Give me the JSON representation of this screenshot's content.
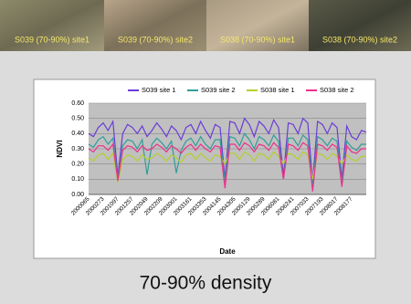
{
  "image_labels": [
    "S039 (70-90%) site1",
    "S039 (70-90%) site2",
    "S038 (70-90%) site1",
    "S038 (70-90%) site2"
  ],
  "caption": "70-90% density",
  "chart_data": {
    "type": "line",
    "x_label": "Date",
    "y_label": "NDVI",
    "categories": [
      "2000065",
      null,
      null,
      "2000273",
      null,
      null,
      "2001097",
      null,
      null,
      "2001257",
      null,
      null,
      "2002049",
      null,
      null,
      "2002209",
      null,
      null,
      "2003001",
      null,
      null,
      "2003161",
      null,
      null,
      "2003353",
      null,
      null,
      "2004145",
      null,
      null,
      "2004305",
      null,
      null,
      "2005129",
      null,
      null,
      "2005289",
      null,
      null,
      "2006081",
      null,
      null,
      "2006241",
      null,
      null,
      "2007033",
      null,
      null,
      "2007193",
      null,
      null,
      "2008017",
      null,
      null,
      "2008177",
      null,
      null,
      null
    ],
    "series": [
      {
        "name": "S039 site 1",
        "color": "#6a3bd6",
        "values": [
          0.4,
          0.38,
          0.44,
          0.47,
          0.42,
          0.48,
          0.12,
          0.4,
          0.46,
          0.44,
          0.4,
          0.45,
          0.38,
          0.42,
          0.47,
          0.43,
          0.38,
          0.45,
          0.42,
          0.36,
          0.44,
          0.46,
          0.4,
          0.48,
          0.42,
          0.37,
          0.46,
          0.44,
          0.1,
          0.48,
          0.47,
          0.4,
          0.5,
          0.46,
          0.38,
          0.48,
          0.45,
          0.4,
          0.49,
          0.44,
          0.12,
          0.47,
          0.46,
          0.4,
          0.5,
          0.47,
          0.08,
          0.48,
          0.46,
          0.4,
          0.47,
          0.44,
          0.1,
          0.45,
          0.38,
          0.36,
          0.42,
          0.41
        ]
      },
      {
        "name": "S039 site 2",
        "color": "#2e9e9a",
        "values": [
          0.33,
          0.31,
          0.36,
          0.38,
          0.33,
          0.37,
          0.1,
          0.32,
          0.36,
          0.35,
          0.3,
          0.36,
          0.13,
          0.33,
          0.37,
          0.34,
          0.3,
          0.35,
          0.14,
          0.29,
          0.35,
          0.37,
          0.32,
          0.38,
          0.33,
          0.3,
          0.36,
          0.36,
          0.08,
          0.38,
          0.37,
          0.32,
          0.4,
          0.36,
          0.3,
          0.38,
          0.36,
          0.32,
          0.39,
          0.35,
          0.1,
          0.37,
          0.37,
          0.32,
          0.39,
          0.36,
          0.05,
          0.38,
          0.36,
          0.32,
          0.37,
          0.35,
          0.08,
          0.35,
          0.31,
          0.29,
          0.33,
          0.33
        ]
      },
      {
        "name": "S038 site 1",
        "color": "#b5d02a",
        "values": [
          0.24,
          0.22,
          0.26,
          0.27,
          0.23,
          0.27,
          0.08,
          0.23,
          0.26,
          0.25,
          0.22,
          0.26,
          0.23,
          0.24,
          0.27,
          0.25,
          0.22,
          0.26,
          0.24,
          0.21,
          0.26,
          0.27,
          0.23,
          0.27,
          0.24,
          0.22,
          0.26,
          0.25,
          0.2,
          0.27,
          0.27,
          0.23,
          0.28,
          0.26,
          0.22,
          0.27,
          0.26,
          0.23,
          0.28,
          0.25,
          0.2,
          0.27,
          0.26,
          0.23,
          0.28,
          0.26,
          0.1,
          0.27,
          0.26,
          0.23,
          0.27,
          0.25,
          0.2,
          0.26,
          0.23,
          0.22,
          0.25,
          0.25
        ]
      },
      {
        "name": "S038 site 2",
        "color": "#ee2f8c",
        "values": [
          0.3,
          0.28,
          0.32,
          0.32,
          0.29,
          0.33,
          0.09,
          0.29,
          0.32,
          0.31,
          0.28,
          0.32,
          0.29,
          0.3,
          0.33,
          0.31,
          0.28,
          0.32,
          0.3,
          0.27,
          0.31,
          0.33,
          0.29,
          0.33,
          0.3,
          0.28,
          0.32,
          0.31,
          0.04,
          0.33,
          0.33,
          0.29,
          0.34,
          0.32,
          0.28,
          0.33,
          0.32,
          0.29,
          0.34,
          0.31,
          0.1,
          0.33,
          0.32,
          0.29,
          0.34,
          0.32,
          0.02,
          0.33,
          0.32,
          0.29,
          0.33,
          0.31,
          0.05,
          0.32,
          0.28,
          0.27,
          0.3,
          0.3
        ]
      }
    ],
    "ylim": [
      0,
      0.6
    ],
    "yticks": [
      {
        "value": 0,
        "label": "0.00"
      },
      {
        "value": 0.1,
        "label": "0.10"
      },
      {
        "value": 0.2,
        "label": "0.20"
      },
      {
        "value": 0.3,
        "label": "0.30"
      },
      {
        "value": 0.4,
        "label": "0.40"
      },
      {
        "value": 0.5,
        "label": "0.50"
      },
      {
        "value": 0.6,
        "label": "0.60"
      }
    ],
    "grid": true,
    "legend": "top"
  }
}
